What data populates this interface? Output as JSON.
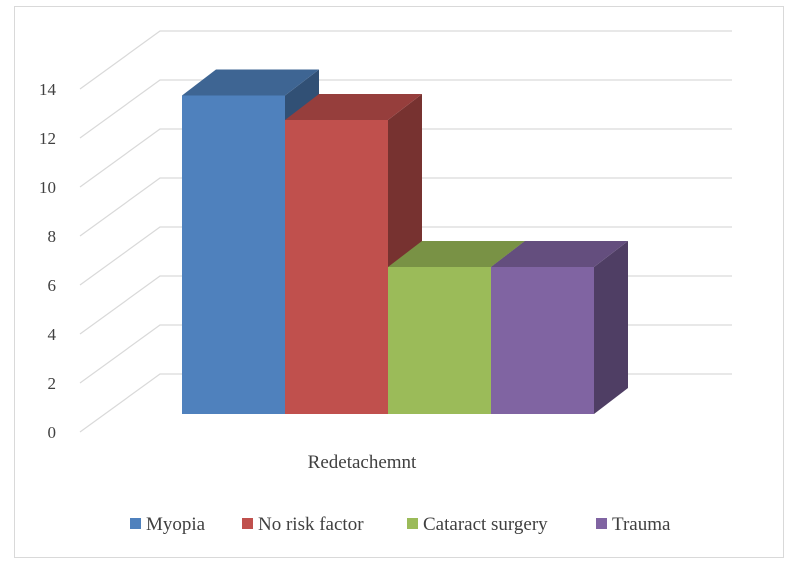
{
  "chart_data": {
    "type": "bar",
    "title": "",
    "xlabel": "",
    "ylabel": "",
    "categories": [
      "Redetachemnt"
    ],
    "series": [
      {
        "name": "Myopia",
        "values": [
          13
        ],
        "color": "#4f81bd"
      },
      {
        "name": "No risk factor",
        "values": [
          12
        ],
        "color": "#c0504d"
      },
      {
        "name": "Cataract surgery",
        "values": [
          6
        ],
        "color": "#9bbb59"
      },
      {
        "name": "Trauma",
        "values": [
          6
        ],
        "color": "#8064a2"
      }
    ],
    "ylim": [
      0,
      14
    ],
    "yticks": [
      0,
      2,
      4,
      6,
      8,
      10,
      12,
      14
    ],
    "grid": true,
    "three_d": true,
    "legend_position": "bottom"
  }
}
